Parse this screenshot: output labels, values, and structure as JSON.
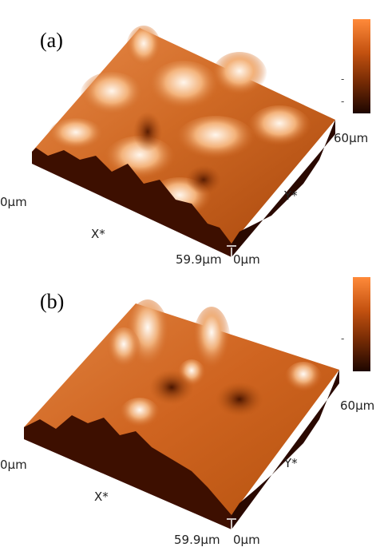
{
  "panels": [
    {
      "label": "(a)",
      "x_start": "0µm",
      "x_axis": "X*",
      "x_end": "59.9µm",
      "y_start": "0µm",
      "y_axis": "Y*",
      "y_end": "60µm"
    },
    {
      "label": "(b)",
      "x_start": "0µm",
      "x_axis": "X*",
      "x_end": "59.9µm",
      "y_start": "0µm",
      "y_axis": "Y*",
      "y_end": "60µm"
    }
  ],
  "colors": {
    "surface_light": "#fbe6d2",
    "surface_mid": "#d2691e",
    "surface_dark": "#3a1000",
    "side_wall": "#3d0f00"
  }
}
